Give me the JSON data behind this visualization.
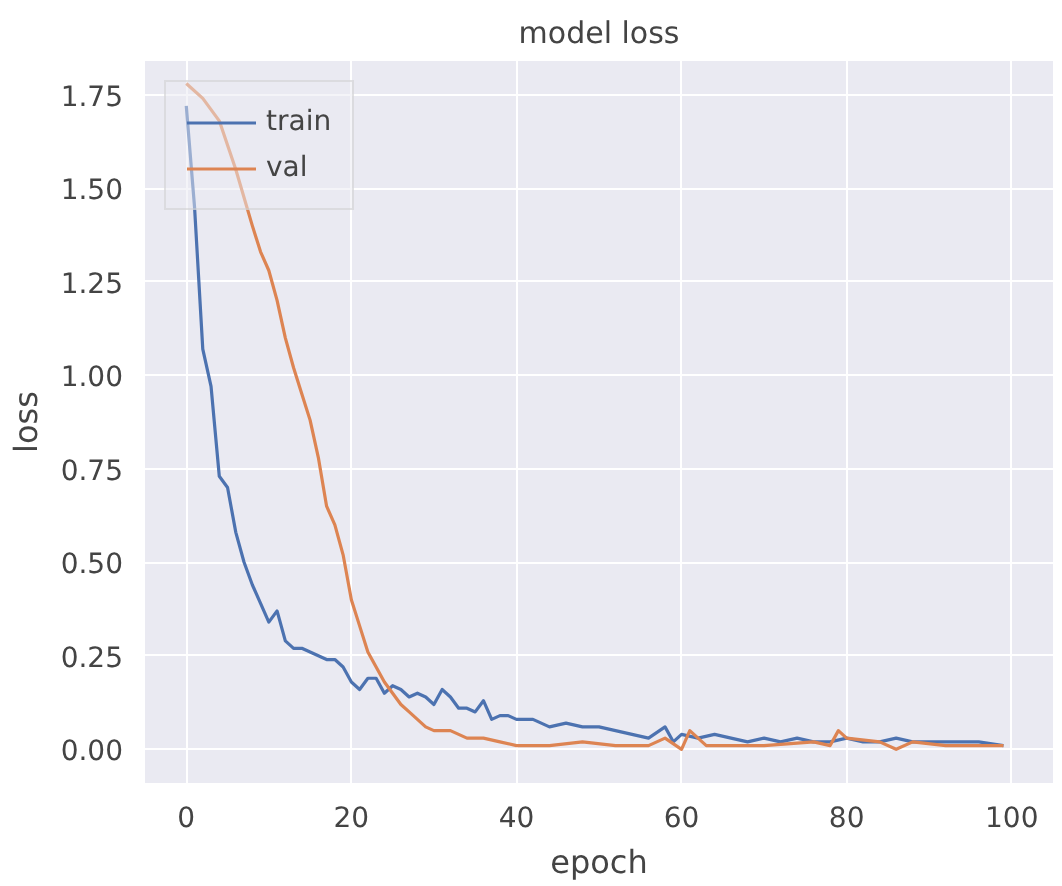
{
  "chart_data": {
    "type": "line",
    "title": "model loss",
    "xlabel": "epoch",
    "ylabel": "loss",
    "xlim": [
      -5,
      105
    ],
    "ylim": [
      -0.09,
      1.84
    ],
    "xticks": [
      0,
      20,
      40,
      60,
      80,
      100
    ],
    "yticks": [
      {
        "value": 0,
        "label": "0.00"
      },
      {
        "value": 0.25,
        "label": "0.25"
      },
      {
        "value": 0.5,
        "label": "0.50"
      },
      {
        "value": 0.75,
        "label": "0.75"
      },
      {
        "value": 1,
        "label": "1.00"
      },
      {
        "value": 1.25,
        "label": "1.25"
      },
      {
        "value": 1.5,
        "label": "1.50"
      },
      {
        "value": 1.75,
        "label": "1.75"
      }
    ],
    "grid": true,
    "legend": "top left",
    "marker": "none",
    "line_style": "solid",
    "series": [
      {
        "name": "train",
        "color": "#4c72b0",
        "x": [
          0,
          1,
          2,
          3,
          4,
          5,
          6,
          7,
          8,
          9,
          10,
          11,
          12,
          13,
          14,
          15,
          16,
          17,
          18,
          19,
          20,
          21,
          22,
          23,
          24,
          25,
          26,
          27,
          28,
          29,
          30,
          31,
          32,
          33,
          34,
          35,
          36,
          37,
          38,
          39,
          40,
          42,
          44,
          46,
          48,
          50,
          52,
          54,
          56,
          58,
          59,
          60,
          62,
          64,
          66,
          68,
          70,
          72,
          74,
          76,
          78,
          80,
          82,
          84,
          86,
          88,
          90,
          92,
          94,
          96,
          99
        ],
        "values": [
          1.72,
          1.45,
          1.07,
          0.97,
          0.73,
          0.7,
          0.58,
          0.5,
          0.44,
          0.39,
          0.34,
          0.37,
          0.29,
          0.27,
          0.27,
          0.26,
          0.25,
          0.24,
          0.24,
          0.22,
          0.18,
          0.16,
          0.19,
          0.19,
          0.15,
          0.17,
          0.16,
          0.14,
          0.15,
          0.14,
          0.12,
          0.16,
          0.14,
          0.11,
          0.11,
          0.1,
          0.13,
          0.08,
          0.09,
          0.09,
          0.08,
          0.08,
          0.06,
          0.07,
          0.06,
          0.06,
          0.05,
          0.04,
          0.03,
          0.06,
          0.02,
          0.04,
          0.03,
          0.04,
          0.03,
          0.02,
          0.03,
          0.02,
          0.03,
          0.02,
          0.02,
          0.03,
          0.02,
          0.02,
          0.03,
          0.02,
          0.02,
          0.02,
          0.02,
          0.02,
          0.01
        ]
      },
      {
        "name": "val",
        "color": "#dd8452",
        "x": [
          0,
          2,
          4,
          6,
          8,
          9,
          10,
          11,
          12,
          13,
          14,
          15,
          16,
          17,
          18,
          19,
          20,
          21,
          22,
          23,
          24,
          25,
          26,
          27,
          28,
          29,
          30,
          32,
          34,
          36,
          38,
          40,
          44,
          48,
          52,
          56,
          58,
          60,
          61,
          63,
          70,
          76,
          78,
          79,
          80,
          84,
          86,
          88,
          92,
          99
        ],
        "values": [
          1.78,
          1.74,
          1.68,
          1.55,
          1.4,
          1.33,
          1.28,
          1.2,
          1.1,
          1.02,
          0.95,
          0.88,
          0.78,
          0.65,
          0.6,
          0.52,
          0.4,
          0.33,
          0.26,
          0.22,
          0.18,
          0.15,
          0.12,
          0.1,
          0.08,
          0.06,
          0.05,
          0.05,
          0.03,
          0.03,
          0.02,
          0.01,
          0.01,
          0.02,
          0.01,
          0.01,
          0.03,
          0.0,
          0.05,
          0.01,
          0.01,
          0.02,
          0.01,
          0.05,
          0.03,
          0.02,
          0.0,
          0.02,
          0.01,
          0.01
        ]
      }
    ]
  }
}
